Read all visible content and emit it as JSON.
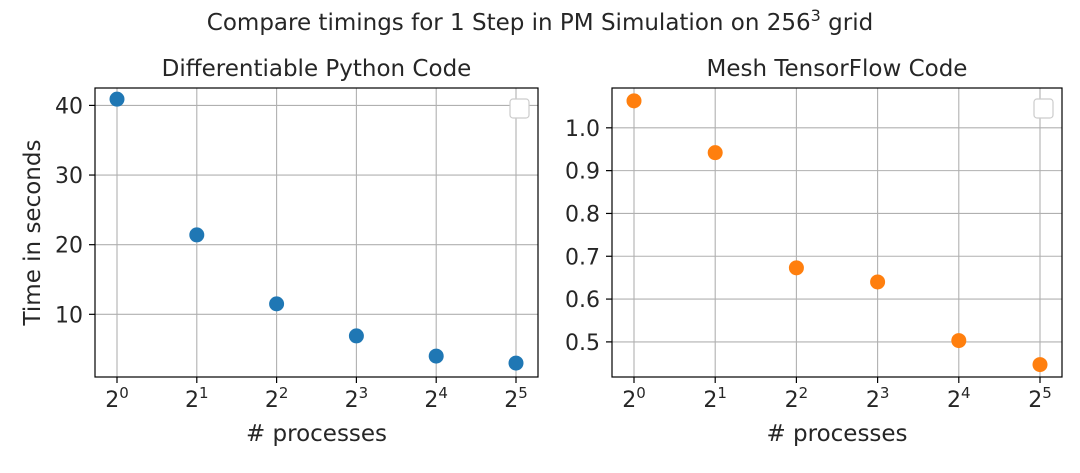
{
  "figure": {
    "title_main": "Compare timings for 1 Step in PM Simulation on 256",
    "title_exponent": "3",
    "title_suffix": " grid"
  },
  "chart_data": [
    {
      "type": "scatter",
      "title": "Differentiable Python Code",
      "xlabel": "# processes",
      "ylabel": "Time in seconds",
      "x_scale": "log2",
      "x": [
        1,
        2,
        4,
        8,
        16,
        32
      ],
      "x_tick_labels": [
        {
          "base": "2",
          "exp": "0"
        },
        {
          "base": "2",
          "exp": "1"
        },
        {
          "base": "2",
          "exp": "2"
        },
        {
          "base": "2",
          "exp": "3"
        },
        {
          "base": "2",
          "exp": "4"
        },
        {
          "base": "2",
          "exp": "5"
        }
      ],
      "y": [
        40.9,
        21.4,
        11.5,
        6.9,
        4.0,
        3.0
      ],
      "y_ticks": [
        "10",
        "20",
        "30",
        "40"
      ],
      "ylim": [
        1.0,
        42.5
      ],
      "color": "#1f77b4",
      "grid": true,
      "legend": "upper right (empty)"
    },
    {
      "type": "scatter",
      "title": "Mesh TensorFlow Code",
      "xlabel": "# processes",
      "ylabel": "",
      "x_scale": "log2",
      "x": [
        1,
        2,
        4,
        8,
        16,
        32
      ],
      "x_tick_labels": [
        {
          "base": "2",
          "exp": "0"
        },
        {
          "base": "2",
          "exp": "1"
        },
        {
          "base": "2",
          "exp": "2"
        },
        {
          "base": "2",
          "exp": "3"
        },
        {
          "base": "2",
          "exp": "4"
        },
        {
          "base": "2",
          "exp": "5"
        }
      ],
      "y": [
        1.063,
        0.942,
        0.673,
        0.64,
        0.503,
        0.447
      ],
      "y_ticks": [
        "0.5",
        "0.6",
        "0.7",
        "0.8",
        "0.9",
        "1.0"
      ],
      "ylim": [
        0.418,
        1.093
      ],
      "color": "#ff7f0e",
      "grid": true,
      "legend": "upper right (empty)"
    }
  ]
}
